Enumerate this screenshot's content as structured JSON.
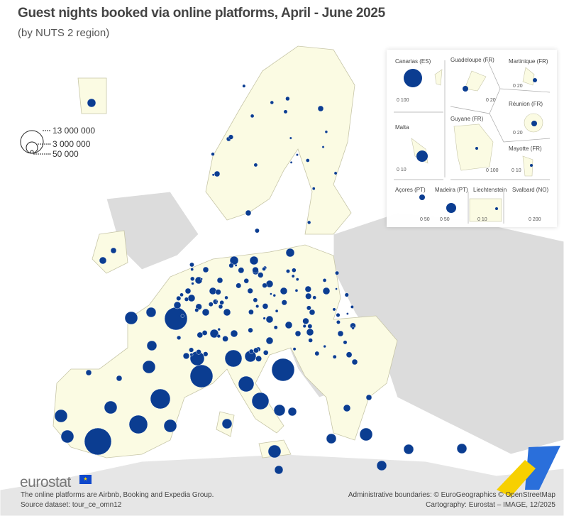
{
  "title": "Guest nights booked via online platforms, April - June 2025",
  "subtitle": "(by NUTS 2 region)",
  "legend": {
    "items": [
      "13 000 000",
      "3 000 000",
      "50 000"
    ],
    "values": [
      13000000,
      3000000,
      50000
    ]
  },
  "insets": [
    {
      "name": "Canarias (ES)",
      "scale": "0  100"
    },
    {
      "name": "Guadeloupe (FR)",
      "scale": "0  20"
    },
    {
      "name": "Martinique (FR)",
      "scale": "0  20"
    },
    {
      "name": "Réunion (FR)",
      "scale": "0  20"
    },
    {
      "name": "Malta",
      "scale": "0  10"
    },
    {
      "name": "Guyane (FR)",
      "scale": "0   100"
    },
    {
      "name": "Mayotte (FR)",
      "scale": "0 10"
    },
    {
      "name": "Açores (PT)",
      "scale": "0  50"
    },
    {
      "name": "Madeira (PT)",
      "scale": "0    50"
    },
    {
      "name": "Liechtenstein",
      "scale": "0  10"
    },
    {
      "name": "Svalbard (NO)",
      "scale": "0   200"
    }
  ],
  "footer": {
    "logo": "eurostat",
    "note": "The online platforms are Airbnb, Booking and Expedia Group.",
    "source": "Source dataset: tour_ce_omn12",
    "boundaries": "Administrative boundaries: © EuroGeographics © OpenStreetMap",
    "cartography": "Cartography: Eurostat – IMAGE, 12/2025"
  },
  "colors": {
    "circle": "#0b3d91",
    "eu_land": "#fbfbe3",
    "other_land": "#d9d9d9",
    "border": "#b8b79a"
  }
}
